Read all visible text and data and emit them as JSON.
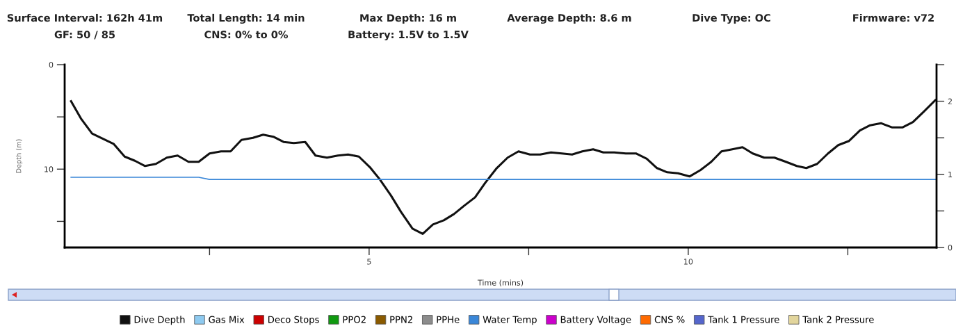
{
  "chart_data": {
    "type": "line",
    "annotations": [
      "Surface Interval: 162h 41m",
      "Total Length: 14 min",
      "Max Depth: 16 m",
      "Average Depth: 8.6 m",
      "Dive Type: OC",
      "Firmware: v72",
      "GF: 50 / 85",
      "CNS: 0% to 0%",
      "Battery: 1.5V to 1.5V"
    ],
    "xlabel": "Time (mins)",
    "ylabel": "Depth (m)",
    "xlim": [
      0.23,
      13.89
    ],
    "xticks": [
      {
        "value": 2.5,
        "label": null
      },
      5,
      {
        "value": 7.5,
        "label": null
      },
      10,
      {
        "value": 12.5,
        "label": null
      }
    ],
    "ylim": [
      17.5,
      0
    ],
    "yticks": [
      0,
      {
        "value": 5,
        "label": null
      },
      10,
      {
        "value": 15,
        "label": null
      }
    ],
    "y2lim": [
      0,
      2.5
    ],
    "y2ticks": [
      0,
      {
        "value": 0.5,
        "label": null
      },
      1,
      {
        "value": 1.5,
        "label": null
      },
      2,
      {
        "value": 2.5,
        "label": null
      }
    ],
    "legend": "bottom",
    "marker": "none",
    "line_style": "solid",
    "grid": false,
    "series": [
      {
        "name": "Dive Depth",
        "color": "#111111",
        "x": [
          0.33,
          0.49,
          0.66,
          0.83,
          1.0,
          1.17,
          1.33,
          1.49,
          1.66,
          1.83,
          2.0,
          2.17,
          2.33,
          2.5,
          2.68,
          2.83,
          3.0,
          3.18,
          3.34,
          3.5,
          3.66,
          3.82,
          4.0,
          4.16,
          4.34,
          4.51,
          4.67,
          4.84,
          5.01,
          5.17,
          5.34,
          5.5,
          5.68,
          5.84,
          6.0,
          6.17,
          6.33,
          6.49,
          6.66,
          6.82,
          7.0,
          7.17,
          7.34,
          7.52,
          7.68,
          7.85,
          8.02,
          8.18,
          8.34,
          8.51,
          8.67,
          8.84,
          9.02,
          9.18,
          9.35,
          9.51,
          9.67,
          9.84,
          10.02,
          10.19,
          10.36,
          10.52,
          10.69,
          10.85,
          11.01,
          11.19,
          11.35,
          11.53,
          11.7,
          11.85,
          12.02,
          12.19,
          12.35,
          12.52,
          12.69,
          12.85,
          13.02,
          13.19,
          13.36,
          13.52,
          13.69,
          13.87
        ],
        "values": [
          3.5,
          5.2,
          6.6,
          7.1,
          7.6,
          8.8,
          9.2,
          9.7,
          9.5,
          8.9,
          8.7,
          9.3,
          9.3,
          8.5,
          8.3,
          8.3,
          7.2,
          7.0,
          6.7,
          6.9,
          7.4,
          7.5,
          7.4,
          8.7,
          8.9,
          8.7,
          8.6,
          8.8,
          9.8,
          11.0,
          12.5,
          14.1,
          15.7,
          16.2,
          15.3,
          14.9,
          14.3,
          13.5,
          12.7,
          11.3,
          9.9,
          8.9,
          8.3,
          8.6,
          8.6,
          8.4,
          8.5,
          8.6,
          8.3,
          8.1,
          8.4,
          8.4,
          8.5,
          8.5,
          9.0,
          9.9,
          10.3,
          10.4,
          10.7,
          10.1,
          9.3,
          8.3,
          8.1,
          7.9,
          8.5,
          8.9,
          8.9,
          9.3,
          9.7,
          9.9,
          9.5,
          8.5,
          7.7,
          7.3,
          6.3,
          5.8,
          5.6,
          6.0,
          6.0,
          5.5,
          4.5,
          3.4
        ]
      },
      {
        "name": "Gas Mix",
        "color": "#8ecaf0"
      },
      {
        "name": "Deco Stops",
        "color": "#cc0000"
      },
      {
        "name": "PPO2",
        "color": "#109a10"
      },
      {
        "name": "PPN2",
        "color": "#8a5a00"
      },
      {
        "name": "PPHe",
        "color": "#8c8c8c"
      },
      {
        "name": "Water Temp",
        "color": "#3a87d8",
        "axis": "y2",
        "x": [
          0.33,
          2.33,
          2.5,
          13.87
        ],
        "values": [
          0.96,
          0.96,
          0.93,
          0.93
        ]
      },
      {
        "name": "Battery Voltage",
        "color": "#cc00cc"
      },
      {
        "name": "CNS %",
        "color": "#ff6a00"
      },
      {
        "name": "Tank 1 Pressure",
        "color": "#5566cc"
      },
      {
        "name": "Tank 2 Pressure",
        "color": "#e2d59c"
      }
    ]
  }
}
